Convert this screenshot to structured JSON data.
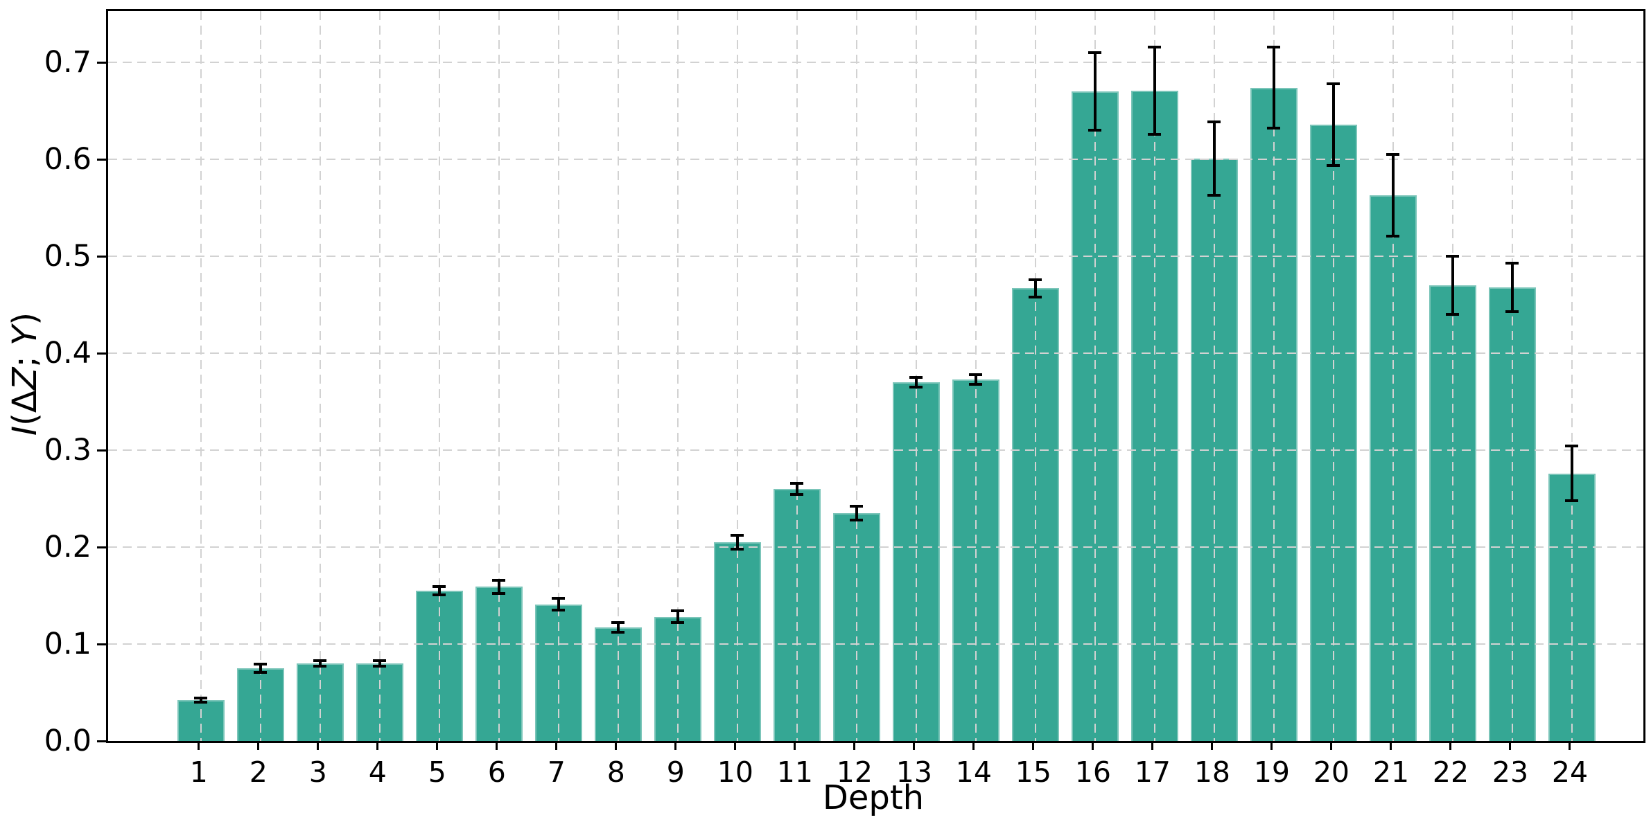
{
  "chart_data": {
    "type": "bar",
    "title": "",
    "xlabel": "Depth",
    "ylabel": "I(ΔZ; Y)",
    "ylabel_segments": [
      {
        "text": "I",
        "italic": true
      },
      {
        "text": "(",
        "italic": false
      },
      {
        "text": "Δ",
        "italic": false
      },
      {
        "text": "Z",
        "italic": true
      },
      {
        "text": "; ",
        "italic": false
      },
      {
        "text": "Y",
        "italic": true
      },
      {
        "text": ")",
        "italic": false
      }
    ],
    "categories": [
      "1",
      "2",
      "3",
      "4",
      "5",
      "6",
      "7",
      "8",
      "9",
      "10",
      "11",
      "12",
      "13",
      "14",
      "15",
      "16",
      "17",
      "18",
      "19",
      "20",
      "21",
      "22",
      "23",
      "24"
    ],
    "values": [
      0.042,
      0.075,
      0.08,
      0.08,
      0.155,
      0.159,
      0.141,
      0.117,
      0.128,
      0.205,
      0.26,
      0.235,
      0.37,
      0.373,
      0.467,
      0.67,
      0.671,
      0.601,
      0.674,
      0.636,
      0.563,
      0.47,
      0.468,
      0.276
    ],
    "errors": [
      0.002,
      0.004,
      0.003,
      0.003,
      0.004,
      0.007,
      0.006,
      0.005,
      0.006,
      0.007,
      0.006,
      0.007,
      0.005,
      0.005,
      0.009,
      0.04,
      0.045,
      0.038,
      0.042,
      0.042,
      0.042,
      0.03,
      0.025,
      0.028
    ],
    "ylim": [
      0,
      0.753
    ],
    "yticks": [
      0.0,
      0.1,
      0.2,
      0.3,
      0.4,
      0.5,
      0.6,
      0.7
    ],
    "ytick_labels": [
      "0.0",
      "0.1",
      "0.2",
      "0.3",
      "0.4",
      "0.5",
      "0.6",
      "0.7"
    ],
    "grid": "dashed-both-axes-above-bars",
    "legend": "none",
    "colors": {
      "bar": "#35a794",
      "error_bar": "#000000",
      "grid": "#d2d2d2",
      "axis": "#000000",
      "background": "#ffffff",
      "text": "#000000"
    }
  }
}
